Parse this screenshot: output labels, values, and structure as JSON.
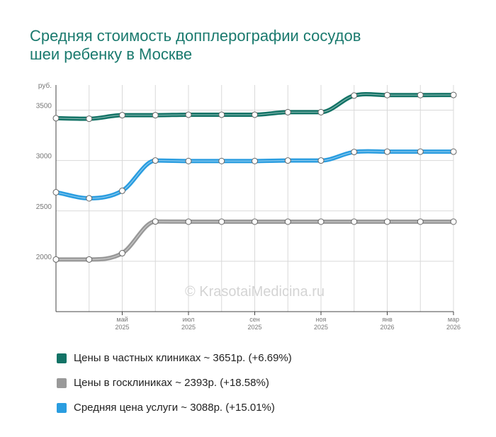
{
  "title_lines": [
    "Средняя стоимость допплерографии сосудов",
    "шеи ребенку в Москве"
  ],
  "watermark": "© KrasotaiMedicina.ru",
  "chart_data": {
    "type": "line",
    "y_unit_label": "руб.",
    "ylim": [
      1500,
      3750
    ],
    "yticks": [
      2000,
      2500,
      3000,
      3500
    ],
    "x": [
      "2025-03",
      "2025-04",
      "2025-05",
      "2025-06",
      "2025-07",
      "2025-08",
      "2025-09",
      "2025-10",
      "2025-11",
      "2025-12",
      "2026-01",
      "2026-02",
      "2026-03"
    ],
    "xtick_labels": [
      {
        "month": "май",
        "year": "2025",
        "at": "2025-05"
      },
      {
        "month": "июл",
        "year": "2025",
        "at": "2025-07"
      },
      {
        "month": "сен",
        "year": "2025",
        "at": "2025-09"
      },
      {
        "month": "ноя",
        "year": "2025",
        "at": "2025-11"
      },
      {
        "month": "янв",
        "year": "2026",
        "at": "2026-01"
      },
      {
        "month": "мар",
        "year": "2026",
        "at": "2026-03"
      }
    ],
    "grid": true,
    "series": [
      {
        "name": "Цены в частных клиниках ~ 3651р. (+6.69%)",
        "color": "#137366",
        "values": [
          3420,
          3415,
          3450,
          3450,
          3455,
          3455,
          3455,
          3480,
          3480,
          3645,
          3650,
          3650,
          3651
        ]
      },
      {
        "name": "Цены в госклиниках ~ 2393р. (+18.58%)",
        "color": "#999999",
        "values": [
          2018,
          2018,
          2080,
          2395,
          2393,
          2393,
          2393,
          2393,
          2393,
          2393,
          2393,
          2393,
          2393
        ]
      },
      {
        "name": "Средняя цена услуги ~ 3088р. (+15.01%)",
        "color": "#2a9de0",
        "values": [
          2685,
          2625,
          2700,
          3000,
          2995,
          2995,
          2995,
          3000,
          3000,
          3085,
          3088,
          3088,
          3088
        ]
      }
    ]
  }
}
